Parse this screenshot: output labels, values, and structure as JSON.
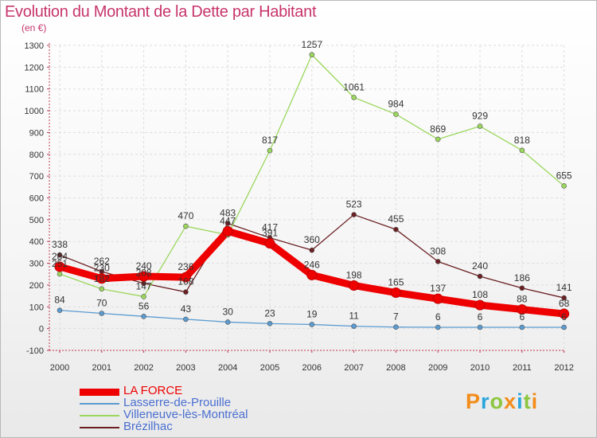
{
  "title": "Evolution du Montant de la Dette par Habitant",
  "unit": "(en €)",
  "logo": {
    "letters": [
      "P",
      "r",
      "o",
      "x",
      "i",
      "t",
      "i"
    ],
    "colors": [
      "#f28c1a",
      "#2aa6dd",
      "#8cc63e",
      "#f28c1a",
      "#2aa6dd",
      "#8cc63e",
      "#f28c1a"
    ]
  },
  "chart_data": {
    "type": "line",
    "x": [
      "2000",
      "2001",
      "2002",
      "2003",
      "2004",
      "2005",
      "2006",
      "2007",
      "2008",
      "2009",
      "2010",
      "2011",
      "2012"
    ],
    "ylim": [
      -100,
      1300
    ],
    "yticks": [
      -100,
      0,
      100,
      200,
      300,
      400,
      500,
      600,
      700,
      800,
      900,
      1000,
      1100,
      1200,
      1300
    ],
    "grid": true,
    "legend_position": "bottom-left",
    "series": [
      {
        "name": "Brézilhac",
        "color": "#6b1f23",
        "width": 1.3,
        "values": [
          338,
          262,
          208,
          168,
          483,
          417,
          360,
          523,
          455,
          308,
          240,
          186,
          141
        ],
        "labels": [
          "338",
          "262",
          "208",
          "168",
          "483",
          "417",
          "360",
          "523",
          "455",
          "308",
          "240",
          "186",
          "141"
        ]
      },
      {
        "name": "Villeneuve-lès-Montréal",
        "color": "#9bd75d",
        "width": 1.3,
        "values": [
          251,
          182,
          147,
          470,
          430,
          817,
          1257,
          1061,
          984,
          869,
          929,
          818,
          655
        ],
        "labels": [
          "251",
          "182",
          "147",
          "470",
          "",
          "817",
          "1257",
          "1061",
          "984",
          "869",
          "929",
          "818",
          "655"
        ]
      },
      {
        "name": "Lasserre-de-Prouille",
        "color": "#5b9bd0",
        "width": 1.3,
        "values": [
          84,
          70,
          56,
          43,
          30,
          23,
          19,
          11,
          7,
          6,
          6,
          6,
          6
        ],
        "labels": [
          "84",
          "70",
          "56",
          "43",
          "30",
          "23",
          "19",
          "11",
          "7",
          "6",
          "6",
          "6",
          "6"
        ]
      },
      {
        "name": "LA FORCE",
        "color": "#ee0000",
        "width": 9,
        "values": [
          284,
          230,
          240,
          236,
          447,
          391,
          246,
          198,
          165,
          137,
          108,
          88,
          68
        ],
        "labels": [
          "284",
          "230",
          "240",
          "236",
          "447",
          "391",
          "246",
          "198",
          "165",
          "137",
          "108",
          "88",
          "68"
        ]
      }
    ],
    "legend_order": [
      "LA FORCE",
      "Lasserre-de-Prouille",
      "Villeneuve-lès-Montréal",
      "Brézilhac"
    ]
  }
}
